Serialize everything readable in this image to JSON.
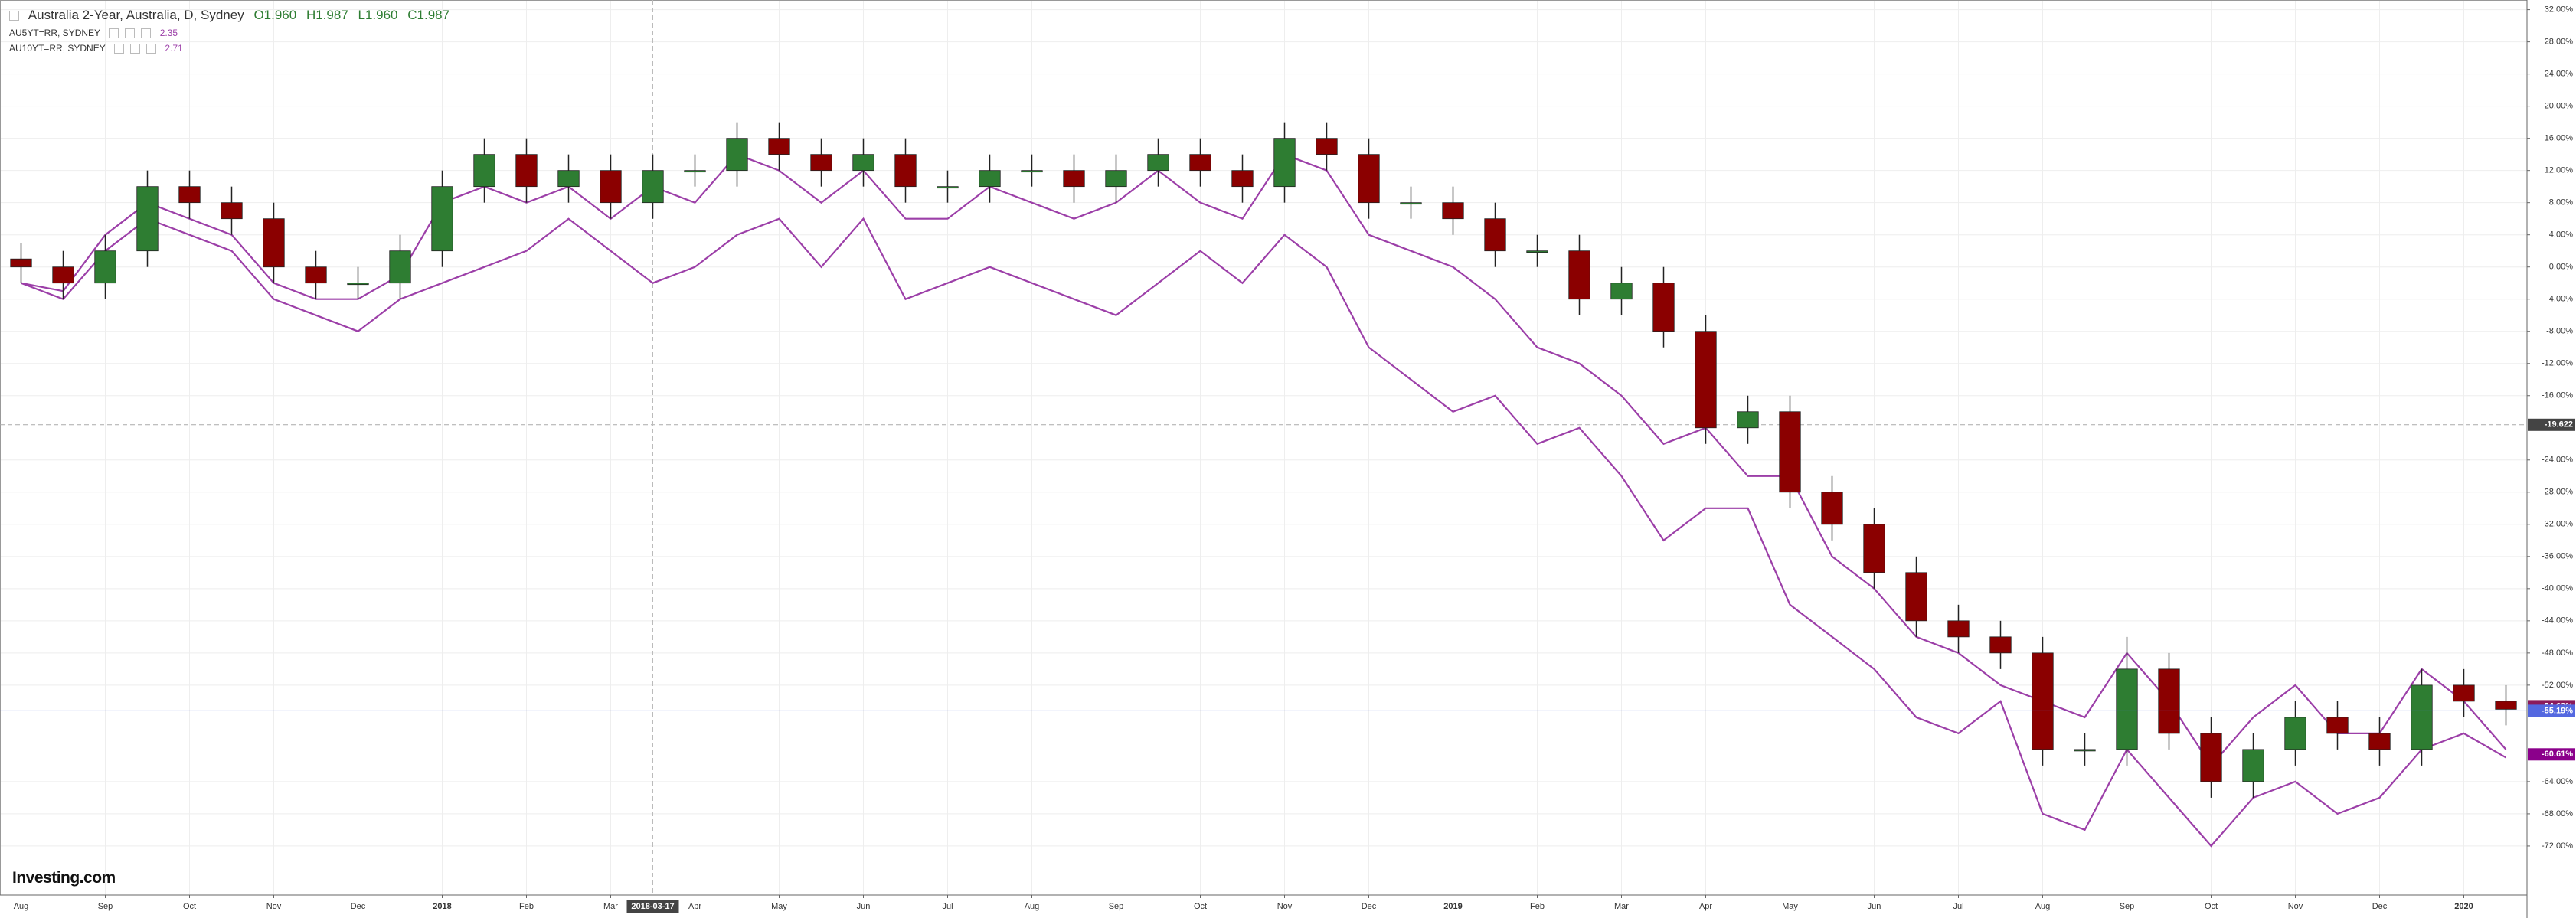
{
  "chart_data": {
    "type": "candlestick",
    "title": "Australia 2-Year, Australia, D, Sydney",
    "ohlc_header": [
      "O1.960",
      "H1.987",
      "L1.960",
      "C1.987"
    ],
    "logo": "Investing.com",
    "categories": [
      "Aug",
      null,
      "Sep",
      null,
      "Oct",
      null,
      "Nov",
      null,
      "Dec",
      null,
      "2018",
      null,
      "Feb",
      null,
      "Mar",
      null,
      "Apr",
      null,
      "May",
      null,
      "Jun",
      null,
      "Jul",
      null,
      "Aug",
      null,
      "Sep",
      null,
      "Oct",
      null,
      "Nov",
      null,
      "Dec",
      null,
      "2019",
      null,
      "Feb",
      null,
      "Mar",
      null,
      "Apr",
      null,
      "May",
      null,
      "Jun",
      null,
      "Jul",
      null,
      "Aug",
      null,
      "Sep",
      null,
      "Oct",
      null,
      "Nov",
      null,
      "Dec",
      null,
      "2020",
      null
    ],
    "open": [
      1,
      0,
      -2,
      2,
      10,
      8,
      6,
      0,
      -2,
      -2,
      2,
      10,
      14,
      10,
      12,
      8,
      12,
      12,
      16,
      14,
      12,
      14,
      10,
      10,
      12,
      12,
      10,
      12,
      14,
      12,
      10,
      16,
      14,
      8,
      8,
      6,
      2,
      2,
      -4,
      -2,
      -8,
      -20,
      -18,
      -28,
      -32,
      -38,
      -44,
      -46,
      -48,
      -60,
      -60,
      -50,
      -58,
      -64,
      -60,
      -56,
      -58,
      -60,
      -52,
      -54
    ],
    "high": [
      3,
      2,
      4,
      12,
      12,
      10,
      8,
      2,
      0,
      4,
      12,
      16,
      16,
      14,
      14,
      14,
      14,
      18,
      18,
      16,
      16,
      16,
      12,
      14,
      14,
      14,
      14,
      16,
      16,
      14,
      18,
      18,
      16,
      10,
      10,
      8,
      4,
      4,
      0,
      0,
      -6,
      -16,
      -16,
      -26,
      -30,
      -36,
      -42,
      -44,
      -46,
      -58,
      -46,
      -48,
      -56,
      -58,
      -54,
      -54,
      -56,
      -50,
      -50,
      -52
    ],
    "low": [
      -2,
      -4,
      -4,
      0,
      6,
      4,
      -2,
      -4,
      -4,
      -4,
      0,
      8,
      8,
      8,
      6,
      6,
      10,
      10,
      12,
      10,
      10,
      8,
      8,
      8,
      10,
      8,
      8,
      10,
      10,
      8,
      8,
      12,
      6,
      6,
      4,
      0,
      0,
      -6,
      -6,
      -10,
      -22,
      -22,
      -30,
      -34,
      -40,
      -46,
      -48,
      -50,
      -62,
      -62,
      -62,
      -60,
      -66,
      -66,
      -62,
      -60,
      -62,
      -62,
      -56,
      -57
    ],
    "close": [
      0,
      -2,
      2,
      10,
      8,
      6,
      0,
      -2,
      -2,
      2,
      10,
      14,
      10,
      12,
      8,
      12,
      12,
      16,
      14,
      12,
      14,
      10,
      10,
      12,
      12,
      10,
      12,
      14,
      12,
      10,
      16,
      14,
      8,
      8,
      6,
      2,
      2,
      -4,
      -2,
      -8,
      -20,
      -18,
      -28,
      -32,
      -38,
      -44,
      -46,
      -48,
      -60,
      -60,
      -50,
      -58,
      -64,
      -60,
      -56,
      -58,
      -60,
      -52,
      -54,
      -55
    ],
    "up_color": "#2e7d32",
    "down_color": "#8b0000",
    "series": [
      {
        "name": "AU5YT=RR, SYDNEY",
        "last": 2.35,
        "color": "#9c3fa8",
        "values": [
          -2,
          -3,
          4,
          8,
          6,
          4,
          -2,
          -4,
          -4,
          -1,
          8,
          10,
          8,
          10,
          6,
          10,
          8,
          14,
          12,
          8,
          12,
          6,
          6,
          10,
          8,
          6,
          8,
          12,
          8,
          6,
          14,
          12,
          4,
          2,
          0,
          -4,
          -10,
          -12,
          -16,
          -22,
          -20,
          -26,
          -26,
          -36,
          -40,
          -46,
          -48,
          -52,
          -54,
          -56,
          -48,
          -54,
          -62,
          -56,
          -52,
          -58,
          -58,
          -50,
          -54,
          -60
        ]
      },
      {
        "name": "AU10YT=RR, SYDNEY",
        "last": 2.71,
        "color": "#9c3fa8",
        "values": [
          -2,
          -4,
          2,
          6,
          4,
          2,
          -4,
          -6,
          -8,
          -4,
          -2,
          0,
          2,
          6,
          2,
          -2,
          0,
          4,
          6,
          0,
          6,
          -4,
          -2,
          0,
          -2,
          -4,
          -6,
          -2,
          2,
          -2,
          4,
          0,
          -10,
          -14,
          -18,
          -16,
          -22,
          -20,
          -26,
          -34,
          -30,
          -30,
          -42,
          -46,
          -50,
          -56,
          -58,
          -54,
          -68,
          -70,
          -60,
          -66,
          -72,
          -66,
          -64,
          -68,
          -66,
          -60,
          -58,
          -61
        ]
      }
    ],
    "ylim": [
      -78.1,
      33.2
    ],
    "yticks": [
      {
        "value": 32,
        "label": "32.00%"
      },
      {
        "value": 28,
        "label": "28.00%"
      },
      {
        "value": 24,
        "label": "24.00%"
      },
      {
        "value": 20,
        "label": "20.00%"
      },
      {
        "value": 16,
        "label": "16.00%"
      },
      {
        "value": 12,
        "label": "12.00%"
      },
      {
        "value": 8,
        "label": "8.00%"
      },
      {
        "value": 4,
        "label": "4.00%"
      },
      {
        "value": 0,
        "label": "0.00%"
      },
      {
        "value": -4,
        "label": "-4.00%"
      },
      {
        "value": -8,
        "label": "-8.00%"
      },
      {
        "value": -12,
        "label": "-12.00%"
      },
      {
        "value": -16,
        "label": "-16.00%"
      },
      {
        "value": -24,
        "label": "-24.00%"
      },
      {
        "value": -28,
        "label": "-28.00%"
      },
      {
        "value": -32,
        "label": "-32.00%"
      },
      {
        "value": -36,
        "label": "-36.00%"
      },
      {
        "value": -40,
        "label": "-40.00%"
      },
      {
        "value": -44,
        "label": "-44.00%"
      },
      {
        "value": -48,
        "label": "-48.00%"
      },
      {
        "value": -52,
        "label": "-52.00%"
      },
      {
        "value": -64,
        "label": "-64.00%"
      },
      {
        "value": -68,
        "label": "-68.00%"
      },
      {
        "value": -72,
        "label": "-72.00%"
      }
    ],
    "grid": true,
    "crosshair": {
      "value": -19.622,
      "date": "2018-03-17"
    },
    "price_markers": [
      {
        "value": -54.62,
        "label": "-54.62%",
        "color": "#8b1a5b"
      },
      {
        "value": -55.19,
        "label": "-55.19%",
        "color": "#5468e0"
      },
      {
        "value": -60.61,
        "label": "-60.61%",
        "color": "#8b008b"
      }
    ]
  }
}
